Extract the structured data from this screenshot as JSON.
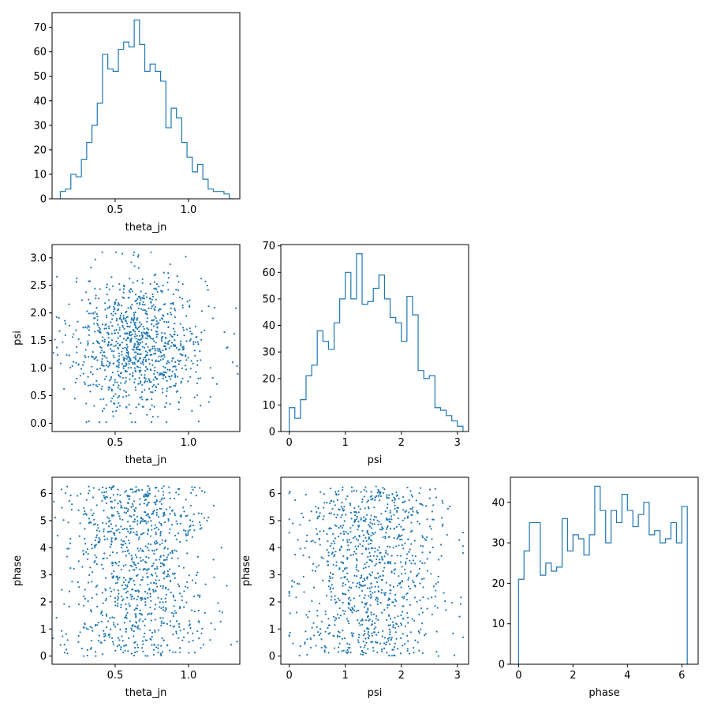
{
  "colors": {
    "series": "#1f77b4",
    "axis": "#000000",
    "background": "#ffffff"
  },
  "chart_data": [
    {
      "type": "histogram",
      "panel": "theta_jn",
      "xlabel": "theta_jn",
      "ylabel": "",
      "xlim": [
        0.07,
        1.35
      ],
      "ylim": [
        0,
        76
      ],
      "xticks": [
        0.5,
        1.0
      ],
      "xtick_labels": [
        "0.5",
        "1.0"
      ],
      "yticks": [
        0,
        10,
        20,
        30,
        40,
        50,
        60,
        70
      ],
      "ytick_labels": [
        "0",
        "10",
        "20",
        "30",
        "40",
        "50",
        "60",
        "70"
      ],
      "bin_edges": [
        0.126,
        0.162,
        0.198,
        0.234,
        0.27,
        0.306,
        0.342,
        0.378,
        0.414,
        0.45,
        0.486,
        0.522,
        0.558,
        0.594,
        0.63,
        0.666,
        0.702,
        0.738,
        0.774,
        0.81,
        0.846,
        0.882,
        0.918,
        0.954,
        0.99,
        1.026,
        1.062,
        1.098,
        1.134,
        1.17,
        1.206,
        1.242,
        1.278,
        1.314
      ],
      "counts": [
        3,
        4,
        10,
        9,
        16,
        23,
        30,
        39,
        59,
        53,
        52,
        61,
        64,
        62,
        73,
        63,
        52,
        55,
        52,
        48,
        29,
        37,
        33,
        23,
        17,
        11,
        14,
        8,
        4,
        3,
        3,
        2,
        0
      ]
    },
    {
      "type": "scatter",
      "panel": "theta_jn-psi",
      "xlabel": "theta_jn",
      "ylabel": "psi",
      "xlim": [
        0.07,
        1.35
      ],
      "ylim": [
        -0.15,
        3.24
      ],
      "xticks": [
        0.5,
        1.0
      ],
      "xtick_labels": [
        "0.5",
        "1.0"
      ],
      "yticks": [
        0.0,
        0.5,
        1.0,
        1.5,
        2.0,
        2.5,
        3.0
      ],
      "ytick_labels": [
        "0.0",
        "0.5",
        "1.0",
        "1.5",
        "2.0",
        "2.5",
        "3.0"
      ],
      "x_mean": 0.66,
      "x_std": 0.23,
      "y_mean": 1.45,
      "y_std": 0.62,
      "n_points": 1000
    },
    {
      "type": "histogram",
      "panel": "psi",
      "xlabel": "psi",
      "ylabel": "",
      "xlim": [
        -0.15,
        3.2
      ],
      "ylim": [
        0,
        70.5
      ],
      "xticks": [
        0,
        1,
        2,
        3
      ],
      "xtick_labels": [
        "0",
        "1",
        "2",
        "3"
      ],
      "yticks": [
        0,
        10,
        20,
        30,
        40,
        50,
        60,
        70
      ],
      "ytick_labels": [
        "0",
        "10",
        "20",
        "30",
        "40",
        "50",
        "60",
        "70"
      ],
      "bin_edges": [
        0.0,
        0.1,
        0.2,
        0.3,
        0.4,
        0.5,
        0.6,
        0.7,
        0.8,
        0.9,
        1.0,
        1.1,
        1.2,
        1.3,
        1.4,
        1.5,
        1.6,
        1.7,
        1.8,
        1.9,
        2.0,
        2.1,
        2.2,
        2.3,
        2.4,
        2.5,
        2.6,
        2.7,
        2.8,
        2.9,
        3.0,
        3.1
      ],
      "counts": [
        9,
        5,
        12,
        21,
        25,
        38,
        34,
        31,
        41,
        50,
        60,
        50,
        67,
        48,
        49,
        54,
        59,
        50,
        43,
        41,
        34,
        51,
        44,
        23,
        20,
        21,
        9,
        8,
        6,
        4,
        2
      ]
    },
    {
      "type": "scatter",
      "panel": "theta_jn-phase",
      "xlabel": "theta_jn",
      "ylabel": "phase",
      "xlim": [
        0.07,
        1.35
      ],
      "ylim": [
        -0.3,
        6.6
      ],
      "xticks": [
        0.5,
        1.0
      ],
      "xtick_labels": [
        "0.5",
        "1.0"
      ],
      "yticks": [
        0,
        1,
        2,
        3,
        4,
        5,
        6
      ],
      "ytick_labels": [
        "0",
        "1",
        "2",
        "3",
        "4",
        "5",
        "6"
      ],
      "x_mean": 0.66,
      "x_std": 0.23,
      "y_range": [
        0.0,
        6.28
      ],
      "n_points": 1000
    },
    {
      "type": "scatter",
      "panel": "psi-phase",
      "xlabel": "psi",
      "ylabel": "phase",
      "xlim": [
        -0.15,
        3.2
      ],
      "ylim": [
        -0.3,
        6.6
      ],
      "xticks": [
        0,
        1,
        2,
        3
      ],
      "xtick_labels": [
        "0",
        "1",
        "2",
        "3"
      ],
      "yticks": [
        0,
        1,
        2,
        3,
        4,
        5,
        6
      ],
      "ytick_labels": [
        "0",
        "1",
        "2",
        "3",
        "4",
        "5",
        "6"
      ],
      "x_mean": 1.45,
      "x_std": 0.62,
      "y_range": [
        0.0,
        6.28
      ],
      "n_points": 1000
    },
    {
      "type": "histogram",
      "panel": "phase",
      "xlabel": "phase",
      "ylabel": "",
      "xlim": [
        -0.3,
        6.6
      ],
      "ylim": [
        0,
        46.2
      ],
      "xticks": [
        0,
        2,
        4,
        6
      ],
      "xtick_labels": [
        "0",
        "2",
        "4",
        "6"
      ],
      "yticks": [
        0,
        10,
        20,
        30,
        40
      ],
      "ytick_labels": [
        "0",
        "10",
        "20",
        "30",
        "40"
      ],
      "bin_edges": [
        0.0,
        0.2,
        0.4,
        0.6,
        0.8,
        1.0,
        1.2,
        1.4,
        1.6,
        1.8,
        2.0,
        2.2,
        2.4,
        2.6,
        2.8,
        3.0,
        3.2,
        3.4,
        3.6,
        3.8,
        4.0,
        4.2,
        4.4,
        4.6,
        4.8,
        5.0,
        5.2,
        5.4,
        5.6,
        5.8,
        6.0,
        6.2,
        6.28
      ],
      "counts": [
        21,
        28,
        35,
        35,
        22,
        25,
        23,
        24,
        36,
        28,
        32,
        31,
        27,
        32,
        44,
        38,
        30,
        38,
        35,
        42,
        38,
        34,
        37,
        40,
        32,
        33,
        30,
        31,
        35,
        30,
        39,
        0
      ]
    }
  ]
}
